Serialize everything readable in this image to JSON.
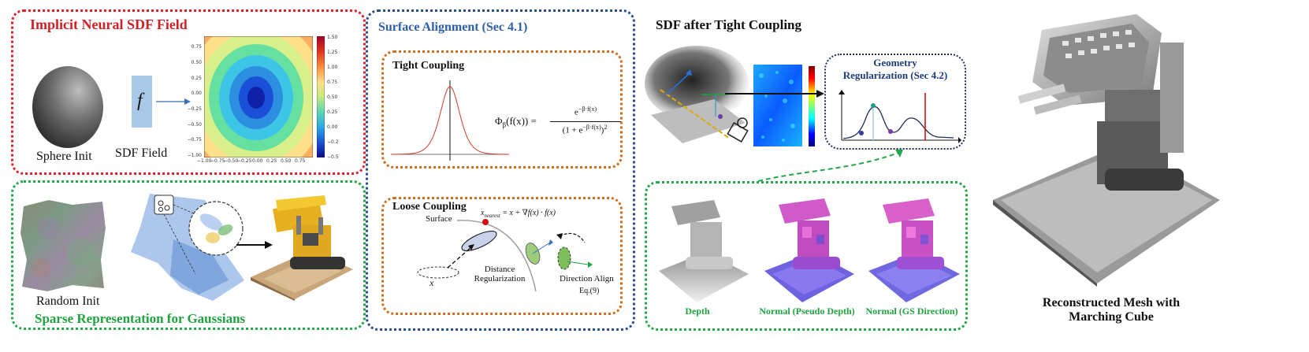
{
  "panels": {
    "implicit_sdf": {
      "title": "Implicit Neural SDF Field",
      "sphere_label": "Sphere Init",
      "sdf_label": "SDF Field",
      "f_symbol": "f",
      "plot_xticks": [
        "−1.00",
        "−0.75",
        "−0.50",
        "−0.25",
        "0.00",
        "0.25",
        "0.50",
        "0.75"
      ],
      "plot_yticks": [
        "0.75",
        "0.50",
        "0.25",
        "0.00",
        "−0.25",
        "−0.50",
        "−0.75",
        "−1.00"
      ],
      "colorbar_ticks": [
        "1.50",
        "1.25",
        "1.00",
        "0.75",
        "0.50",
        "0.25",
        "0.00",
        "−0.2",
        "−0.5"
      ]
    },
    "sparse": {
      "title": "Sparse Representation for Gaussians",
      "random_label": "Random Init"
    },
    "surface_alignment": {
      "title": "Surface Alignment (Sec 4.1)",
      "tight": {
        "title": "Tight Coupling",
        "formula_lhs": "Φ",
        "formula_sub": "β",
        "formula_arg": "(f(x)) =",
        "formula_num": "e",
        "formula_num_exp": "−β·f(x)",
        "formula_den_a": "(1 + e",
        "formula_den_exp": "−β·f(x)",
        "formula_den_b": ")",
        "formula_den_pow": "2"
      },
      "loose": {
        "title": "Loose Coupling",
        "surface_label": "Surface",
        "x_nearest_formula": "x",
        "x_nearest_sub": "nearest",
        "x_nearest_rhs": " = x + ∇f(x) · f(x)",
        "x_label": "x",
        "distance_label_1": "Distance",
        "distance_label_2": "Regularization",
        "direction_label": "Direction Align",
        "eq_label": "Eq.(9)"
      }
    },
    "sdf_after": {
      "title": "SDF after Tight Coupling"
    },
    "geometry_reg": {
      "title_1": "Geometry",
      "title_2": "Regularization (Sec 4.2)"
    },
    "normals": {
      "captions": [
        "Depth",
        "Normal (Pseudo Depth)",
        "Normal (GS Direction)"
      ]
    },
    "mesh": {
      "caption_1": "Reconstructed Mesh with",
      "caption_2": "Marching Cube"
    }
  },
  "colors": {
    "red": "#e0202a",
    "green": "#22a84a",
    "blue": "#2f4f8a",
    "orange": "#cf6d1d"
  }
}
